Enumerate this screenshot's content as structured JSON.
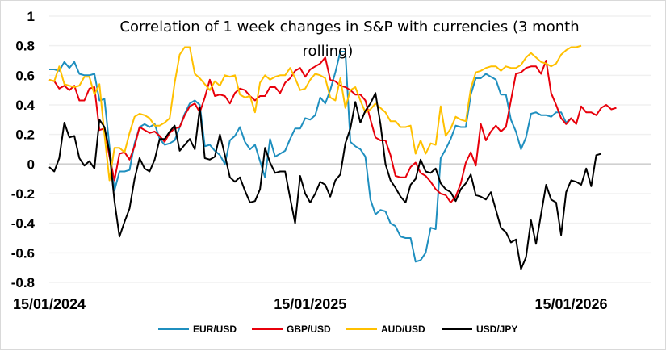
{
  "chart_data": {
    "type": "line",
    "title": "Correlation of 1 week changes in S&P with currencies (3 month rolling)",
    "title_lines": [
      "Correlation of 1 week changes in S&P with currencies (3 month",
      "rolling)"
    ],
    "xlabel": "",
    "ylabel": "",
    "ylim": [
      -0.8,
      1
    ],
    "yticks": [
      1,
      0.8,
      0.6,
      0.4,
      0.2,
      0,
      -0.2,
      -0.4,
      -0.6,
      -0.8
    ],
    "ytick_labels": [
      "1",
      "0.8",
      "0.6",
      "0.4",
      "0.2",
      "0",
      "-0.2",
      "-0.4",
      "-0.6",
      "-0.8"
    ],
    "xtick_labels": [
      "15/01/2024",
      "15/01/2025",
      "15/01/2026"
    ],
    "xtick_index": [
      0,
      52,
      104
    ],
    "x_count": 121,
    "grid": true,
    "legend": "bottom",
    "series": [
      {
        "name": "EUR/USD",
        "color": "#1f8fbf",
        "values": [
          0.64,
          0.64,
          0.63,
          0.69,
          0.65,
          0.69,
          0.61,
          0.6,
          0.6,
          0.61,
          0.43,
          0.44,
          0.12,
          -0.18,
          -0.05,
          -0.05,
          -0.04,
          0.14,
          0.25,
          0.27,
          0.25,
          0.27,
          0.17,
          0.13,
          0.14,
          0.16,
          0.25,
          0.34,
          0.41,
          0.43,
          0.4,
          0.12,
          0.13,
          0.09,
          0.06,
          0.0,
          0.16,
          0.19,
          0.25,
          0.15,
          0.1,
          0.13,
          0.02,
          -0.09,
          0.17,
          0.05,
          0.07,
          0.09,
          0.17,
          0.24,
          0.24,
          0.31,
          0.3,
          0.33,
          0.45,
          0.41,
          0.5,
          0.62,
          0.76,
          0.76,
          0.15,
          0.12,
          0.1,
          0.05,
          -0.24,
          -0.34,
          -0.31,
          -0.32,
          -0.4,
          -0.42,
          -0.49,
          -0.5,
          -0.5,
          -0.66,
          -0.65,
          -0.6,
          -0.43,
          -0.44,
          0.04,
          0.1,
          0.17,
          0.26,
          0.25,
          0.25,
          0.47,
          0.58,
          0.58,
          0.61,
          0.59,
          0.57,
          0.47,
          0.47,
          0.3,
          0.22,
          0.1,
          0.18,
          0.34,
          0.35,
          0.33,
          0.33,
          0.32,
          0.35,
          0.35,
          0.28,
          0.31
        ]
      },
      {
        "name": "GBP/USD",
        "color": "#e8000b",
        "values": [
          0.57,
          0.56,
          0.51,
          0.53,
          0.5,
          0.53,
          0.43,
          0.43,
          0.51,
          0.52,
          0.23,
          0.24,
          0.05,
          -0.11,
          0.07,
          0.08,
          0.03,
          0.12,
          0.25,
          0.23,
          0.21,
          0.22,
          0.19,
          0.15,
          0.21,
          0.24,
          0.25,
          0.33,
          0.39,
          0.41,
          0.35,
          0.45,
          0.57,
          0.46,
          0.47,
          0.46,
          0.41,
          0.48,
          0.51,
          0.5,
          0.46,
          0.43,
          0.46,
          0.46,
          0.52,
          0.52,
          0.48,
          0.55,
          0.58,
          0.63,
          0.65,
          0.59,
          0.64,
          0.66,
          0.68,
          0.72,
          0.57,
          0.56,
          0.53,
          0.52,
          0.5,
          0.47,
          0.47,
          0.43,
          0.3,
          0.18,
          0.16,
          0.16,
          0.06,
          -0.08,
          -0.09,
          -0.09,
          -0.02,
          0.01,
          -0.06,
          -0.08,
          -0.12,
          -0.17,
          -0.2,
          -0.21,
          -0.26,
          -0.22,
          -0.13,
          0.01,
          0.08,
          -0.01,
          0.27,
          0.16,
          0.22,
          0.26,
          0.22,
          0.25,
          0.43,
          0.61,
          0.62,
          0.65,
          0.66,
          0.66,
          0.61,
          0.7,
          0.48,
          0.4,
          0.31,
          0.27,
          0.31,
          0.27,
          0.39,
          0.35,
          0.35,
          0.33,
          0.38,
          0.4,
          0.37,
          0.38
        ]
      },
      {
        "name": "AUD/USD",
        "color": "#ffc000",
        "values": [
          0.57,
          0.56,
          0.66,
          0.54,
          0.53,
          0.52,
          0.53,
          0.59,
          0.59,
          0.47,
          0.54,
          0.2,
          -0.11,
          0.11,
          0.11,
          0.08,
          0.21,
          0.32,
          0.34,
          0.33,
          0.31,
          0.26,
          0.26,
          0.28,
          0.31,
          0.55,
          0.74,
          0.79,
          0.79,
          0.61,
          0.58,
          0.54,
          0.5,
          0.56,
          0.53,
          0.6,
          0.59,
          0.6,
          0.47,
          0.45,
          0.46,
          0.35,
          0.55,
          0.6,
          0.57,
          0.59,
          0.6,
          0.6,
          0.65,
          0.58,
          0.5,
          0.51,
          0.57,
          0.61,
          0.6,
          0.58,
          0.45,
          0.43,
          0.58,
          0.38,
          0.5,
          0.52,
          0.43,
          0.35,
          0.37,
          0.41,
          0.38,
          0.35,
          0.29,
          0.29,
          0.25,
          0.25,
          0.26,
          0.07,
          0.16,
          0.07,
          0.14,
          0.13,
          0.39,
          0.19,
          0.24,
          0.32,
          0.3,
          0.29,
          0.51,
          0.62,
          0.63,
          0.65,
          0.66,
          0.66,
          0.63,
          0.66,
          0.65,
          0.65,
          0.67,
          0.72,
          0.75,
          0.72,
          0.69,
          0.68,
          0.66,
          0.68,
          0.74,
          0.77,
          0.79,
          0.79,
          0.8
        ]
      },
      {
        "name": "USD/JPY",
        "color": "#000000",
        "values": [
          -0.02,
          -0.05,
          0.04,
          0.28,
          0.18,
          0.19,
          0.04,
          -0.01,
          0.02,
          -0.03,
          0.3,
          0.25,
          0.08,
          -0.25,
          -0.49,
          -0.39,
          -0.3,
          -0.1,
          0.04,
          -0.03,
          -0.05,
          0.03,
          0.17,
          0.17,
          0.22,
          0.26,
          0.09,
          0.13,
          0.17,
          0.1,
          0.38,
          0.04,
          0.03,
          0.05,
          0.2,
          0.06,
          -0.09,
          -0.12,
          -0.09,
          -0.18,
          -0.26,
          -0.25,
          -0.17,
          0.11,
          0.01,
          -0.06,
          -0.05,
          -0.05,
          -0.23,
          -0.4,
          -0.08,
          -0.2,
          -0.26,
          -0.2,
          -0.12,
          -0.14,
          -0.22,
          -0.11,
          -0.07,
          0.14,
          0.24,
          0.42,
          0.28,
          0.36,
          0.41,
          0.48,
          0.27,
          0.0,
          -0.11,
          -0.16,
          -0.22,
          -0.26,
          -0.14,
          -0.1,
          0.03,
          -0.05,
          -0.06,
          -0.03,
          -0.13,
          -0.17,
          -0.19,
          -0.25,
          -0.17,
          -0.13,
          -0.07,
          -0.21,
          -0.22,
          -0.24,
          -0.19,
          -0.31,
          -0.43,
          -0.46,
          -0.53,
          -0.51,
          -0.71,
          -0.63,
          -0.38,
          -0.54,
          -0.34,
          -0.14,
          -0.24,
          -0.26,
          -0.48,
          -0.19,
          -0.11,
          -0.12,
          -0.14,
          -0.03,
          -0.15,
          0.06,
          0.07
        ]
      }
    ]
  }
}
